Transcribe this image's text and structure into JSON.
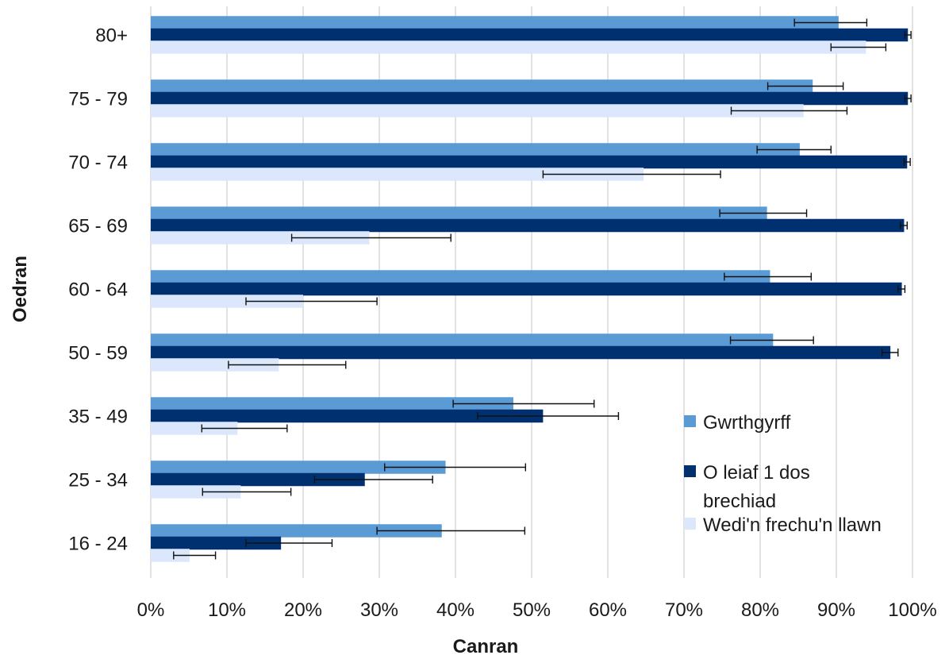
{
  "chart_data": {
    "type": "bar",
    "orientation": "horizontal",
    "xlabel": "Canran",
    "ylabel": "Oedran",
    "xlim": [
      0,
      100
    ],
    "x_ticks": [
      "0%",
      "10%",
      "20%",
      "30%",
      "40%",
      "50%",
      "60%",
      "70%",
      "80%",
      "90%",
      "100%"
    ],
    "grid": true,
    "legend_position": "right",
    "categories": [
      "80+",
      "75 - 79",
      "70 - 74",
      "65 - 69",
      "60 - 64",
      "50 - 59",
      "35 - 49",
      "25 - 34",
      "16 - 24"
    ],
    "series": [
      {
        "name": "Gwrthgyrff",
        "color": "#5b9bd5",
        "values": [
          90.3,
          86.9,
          85.2,
          80.9,
          81.3,
          81.7,
          47.6,
          38.7,
          38.2
        ],
        "err_low": [
          84.5,
          81.0,
          79.6,
          74.7,
          75.3,
          76.1,
          39.7,
          30.7,
          29.7
        ],
        "err_high": [
          94.0,
          90.9,
          89.3,
          86.1,
          86.7,
          87.0,
          58.2,
          49.2,
          49.1
        ]
      },
      {
        "name": "O leiaf 1 dos brechiad",
        "color": "#003070",
        "values": [
          99.4,
          99.4,
          99.3,
          98.9,
          98.6,
          97.1,
          51.5,
          28.1,
          17.1
        ],
        "err_low": [
          99.0,
          99.0,
          98.9,
          98.4,
          98.1,
          96.0,
          42.9,
          21.5,
          12.5
        ],
        "err_high": [
          99.8,
          99.8,
          99.7,
          99.3,
          99.0,
          98.1,
          61.4,
          37.0,
          23.8
        ]
      },
      {
        "name": "Wedi'n frechu'n llawn",
        "color": "#dbe8fb",
        "values": [
          93.9,
          85.7,
          64.7,
          28.7,
          20.0,
          16.8,
          11.4,
          11.8,
          5.1
        ],
        "err_low": [
          89.3,
          76.2,
          51.5,
          18.5,
          12.5,
          10.2,
          6.7,
          6.8,
          3.0
        ],
        "err_high": [
          96.5,
          91.4,
          74.8,
          39.4,
          29.7,
          25.6,
          17.9,
          18.4,
          8.5
        ]
      }
    ],
    "legend_lines": [
      [
        "Gwrthgyrff"
      ],
      [
        "O leiaf 1 dos",
        "brechiad"
      ],
      [
        "Wedi'n frechu'n llawn"
      ]
    ]
  }
}
